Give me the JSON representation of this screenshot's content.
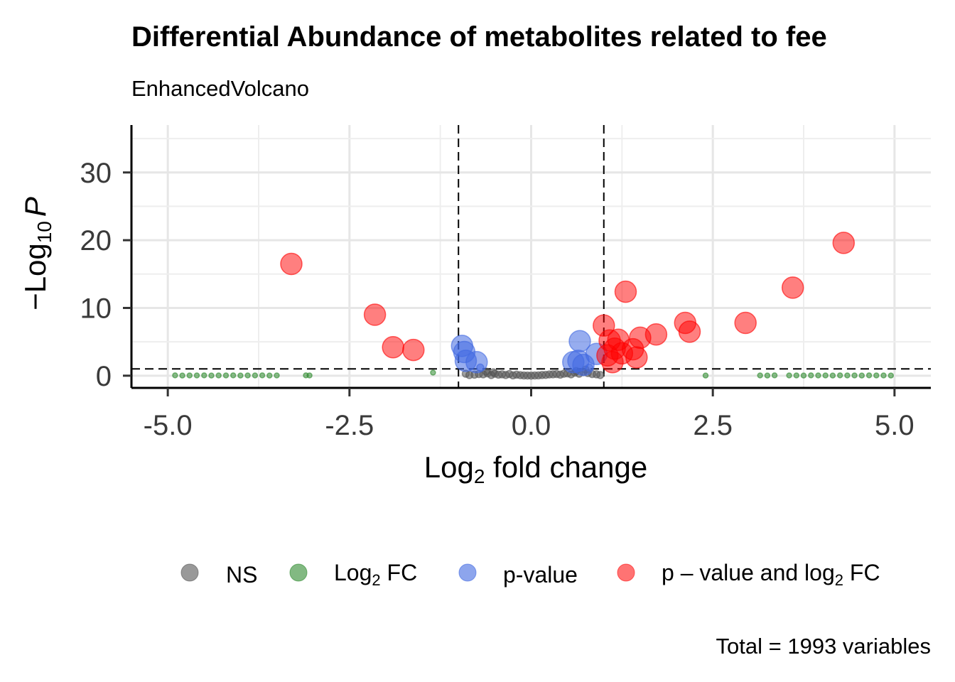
{
  "chart_data": {
    "type": "scatter",
    "title": "Differential Abundance of metabolites related to fee",
    "subtitle": "EnhancedVolcano",
    "xlabel": {
      "main": "Log",
      "sub": "2",
      "rest": " fold change"
    },
    "ylabel": {
      "prefix": "−Log",
      "sub": "10",
      "italic": "P"
    },
    "xlim": [
      -5.5,
      5.5
    ],
    "ylim": [
      -1.8,
      37
    ],
    "xticks": [
      {
        "value": -5.0,
        "label": "-5.0"
      },
      {
        "value": -2.5,
        "label": "-2.5"
      },
      {
        "value": 0.0,
        "label": "0.0"
      },
      {
        "value": 2.5,
        "label": "2.5"
      },
      {
        "value": 5.0,
        "label": "5.0"
      }
    ],
    "yticks": [
      {
        "value": 0,
        "label": "0"
      },
      {
        "value": 10,
        "label": "10"
      },
      {
        "value": 20,
        "label": "20"
      },
      {
        "value": 30,
        "label": "30"
      }
    ],
    "fc_cutoffs": [
      -1,
      1
    ],
    "p_cutoff_log10": 1.0,
    "grid": true,
    "legend_position": "bottom",
    "caption": "Total = 1993 variables",
    "series": [
      {
        "name": "NS",
        "color": "#555555",
        "points": [
          [
            -0.78,
            0.15
          ],
          [
            -0.72,
            0.25
          ],
          [
            -0.66,
            0.2
          ],
          [
            -0.6,
            0.35
          ],
          [
            -0.55,
            0.1
          ],
          [
            -0.5,
            0.3
          ],
          [
            -0.45,
            0.15
          ],
          [
            -0.4,
            0.2
          ],
          [
            -0.35,
            0.1
          ],
          [
            -0.3,
            0.25
          ],
          [
            -0.25,
            0.05
          ],
          [
            -0.2,
            0.15
          ],
          [
            -0.15,
            0.08
          ],
          [
            -0.1,
            0.03
          ],
          [
            -0.05,
            0.02
          ],
          [
            0.0,
            0.01
          ],
          [
            0.05,
            0.03
          ],
          [
            0.1,
            0.05
          ],
          [
            0.15,
            0.1
          ],
          [
            0.2,
            0.12
          ],
          [
            0.25,
            0.18
          ],
          [
            0.3,
            0.2
          ],
          [
            0.35,
            0.25
          ],
          [
            0.4,
            0.15
          ],
          [
            0.45,
            0.3
          ],
          [
            0.5,
            0.35
          ],
          [
            0.55,
            0.2
          ],
          [
            0.6,
            0.45
          ],
          [
            0.66,
            0.3
          ],
          [
            0.72,
            0.55
          ],
          [
            0.78,
            0.4
          ],
          [
            0.84,
            0.25
          ],
          [
            0.9,
            0.2
          ],
          [
            0.95,
            0.1
          ],
          [
            -0.9,
            0.3
          ],
          [
            -0.85,
            0.1
          ],
          [
            -0.62,
            0.6
          ],
          [
            -0.52,
            0.5
          ],
          [
            0.62,
            0.7
          ],
          [
            0.75,
            0.9
          ]
        ]
      },
      {
        "name": "Log2 FC",
        "color": "#2e8b2e",
        "points": [
          [
            -4.9,
            0.05
          ],
          [
            -4.8,
            0.02
          ],
          [
            -4.7,
            0.04
          ],
          [
            -4.6,
            0.03
          ],
          [
            -4.5,
            0.05
          ],
          [
            -4.4,
            0.02
          ],
          [
            -4.3,
            0.04
          ],
          [
            -4.2,
            0.03
          ],
          [
            -4.1,
            0.05
          ],
          [
            -4.0,
            0.02
          ],
          [
            -3.9,
            0.04
          ],
          [
            -3.8,
            0.03
          ],
          [
            -3.7,
            0.05
          ],
          [
            -3.6,
            0.02
          ],
          [
            -3.5,
            0.04
          ],
          [
            -3.1,
            0.05
          ],
          [
            -3.05,
            0.03
          ],
          [
            -1.35,
            0.45
          ],
          [
            2.4,
            0.02
          ],
          [
            3.15,
            0.04
          ],
          [
            3.25,
            0.02
          ],
          [
            3.35,
            0.05
          ],
          [
            3.55,
            0.03
          ],
          [
            3.65,
            0.04
          ],
          [
            3.75,
            0.02
          ],
          [
            3.85,
            0.05
          ],
          [
            3.95,
            0.03
          ],
          [
            4.05,
            0.04
          ],
          [
            4.15,
            0.02
          ],
          [
            4.25,
            0.05
          ],
          [
            4.35,
            0.03
          ],
          [
            4.45,
            0.04
          ],
          [
            4.55,
            0.02
          ],
          [
            4.65,
            0.05
          ],
          [
            4.75,
            0.03
          ],
          [
            4.85,
            0.04
          ],
          [
            4.95,
            0.02
          ]
        ]
      },
      {
        "name": "p-value",
        "color": "#4169e1",
        "points": [
          [
            -0.95,
            4.4
          ],
          [
            -0.92,
            3.5
          ],
          [
            -0.9,
            2.2
          ],
          [
            -0.75,
            2.0
          ],
          [
            -0.7,
            1.2
          ],
          [
            0.58,
            2.0
          ],
          [
            0.67,
            5.1
          ],
          [
            0.65,
            2.2
          ],
          [
            0.9,
            3.2
          ],
          [
            0.8,
            1.2
          ],
          [
            0.72,
            1.6
          ]
        ]
      },
      {
        "name": "p – value and log2 FC",
        "color": "#ff0000",
        "points": [
          [
            -3.3,
            16.5
          ],
          [
            -2.15,
            9.0
          ],
          [
            -1.9,
            4.2
          ],
          [
            -1.62,
            3.8
          ],
          [
            1.0,
            7.4
          ],
          [
            1.05,
            3.0
          ],
          [
            1.08,
            5.2
          ],
          [
            1.12,
            2.0
          ],
          [
            1.15,
            4.0
          ],
          [
            1.2,
            5.3
          ],
          [
            1.25,
            3.3
          ],
          [
            1.3,
            12.4
          ],
          [
            1.4,
            3.9
          ],
          [
            1.45,
            2.7
          ],
          [
            1.5,
            5.6
          ],
          [
            1.72,
            6.1
          ],
          [
            2.12,
            7.8
          ],
          [
            2.18,
            6.5
          ],
          [
            2.95,
            7.8
          ],
          [
            3.6,
            13.0
          ],
          [
            4.3,
            19.6
          ]
        ]
      }
    ],
    "legend_items": [
      {
        "label": "NS",
        "color": "#555555"
      },
      {
        "label": "Log",
        "sub": "2",
        "rest": " FC",
        "color": "#2e8b2e"
      },
      {
        "label": "p-value",
        "color": "#4169e1"
      },
      {
        "label": "p – value and log",
        "sub": "2",
        "rest": " FC",
        "color": "#ff0000"
      }
    ]
  }
}
